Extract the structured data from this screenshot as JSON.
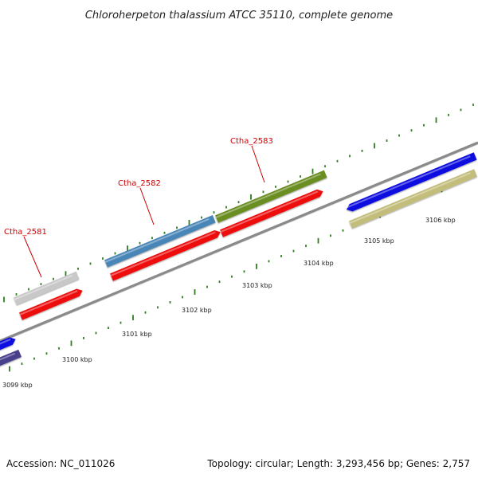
{
  "title": "Chloroherpeton thalassium ATCC 35110, complete genome",
  "footer": {
    "accession": "Accession: NC_011026",
    "summary": "Topology: circular; Length: 3,293,456 bp; Genes: 2,757"
  },
  "colors": {
    "backbone": "#8a8a8a",
    "tick": "#2e7d1e",
    "label": "#cc0000",
    "text": "#222222"
  },
  "ticks": [
    {
      "label": "3099 kbp"
    },
    {
      "label": "3100 kbp"
    },
    {
      "label": "3101 kbp"
    },
    {
      "label": "3102 kbp"
    },
    {
      "label": "3103 kbp"
    },
    {
      "label": "3104 kbp"
    },
    {
      "label": "3105 kbp"
    },
    {
      "label": "3106 kbp"
    }
  ],
  "genes": [
    {
      "label": "Ctha_2581",
      "color": "#c8c8c8"
    },
    {
      "label": "Ctha_2582",
      "color": "#4a86b8"
    },
    {
      "label": "Ctha_2583",
      "color": "#6b8e23"
    }
  ],
  "features": [
    {
      "name": "cds-red-1",
      "color": "#ee1111"
    },
    {
      "name": "cds-red-2",
      "color": "#ee1111"
    },
    {
      "name": "cds-red-3",
      "color": "#ee1111"
    },
    {
      "name": "cds-blue-right",
      "color": "#1010e0"
    },
    {
      "name": "cds-khaki",
      "color": "#c2bd7a"
    },
    {
      "name": "cds-blue-left",
      "color": "#1010e0"
    },
    {
      "name": "cds-navy-left",
      "color": "#4a3f8c"
    }
  ]
}
